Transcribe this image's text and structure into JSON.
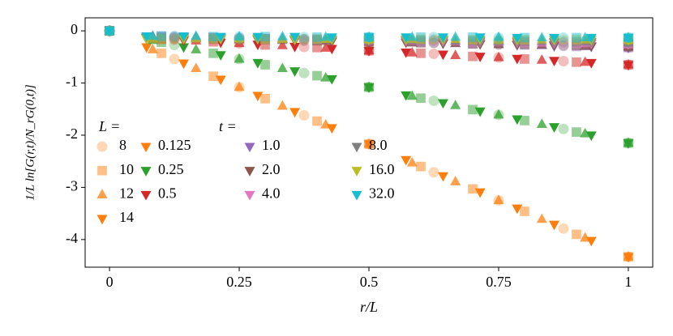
{
  "chart_data": {
    "type": "scatter",
    "xlabel": "r/L",
    "ylabel": "1/L ln[G(r,t)/N_rG(0,t)]",
    "xlim": [
      -0.047,
      1.047
    ],
    "ylim": [
      -4.53,
      0.25
    ],
    "xticks": [
      0,
      0.25,
      0.5,
      0.75,
      1
    ],
    "yticks": [
      0,
      -1,
      -2,
      -3,
      -4
    ],
    "L_legend": {
      "title": "L =",
      "labels": [
        "8",
        "10",
        "12",
        "14"
      ],
      "markers": [
        "circle",
        "square",
        "triangle-up",
        "triangle-down"
      ],
      "alphas": [
        0.3,
        0.5,
        0.75,
        1
      ]
    },
    "t_legend_title": "t =",
    "x": [
      [
        0,
        0.125,
        0.25,
        0.375,
        0.5,
        0.625,
        0.75,
        0.875,
        1
      ],
      [
        0,
        0.1,
        0.2,
        0.3,
        0.4,
        0.5,
        0.6,
        0.7,
        0.8,
        0.9,
        1
      ],
      [
        0,
        0.0833,
        0.1667,
        0.25,
        0.3333,
        0.4167,
        0.5,
        0.5833,
        0.6667,
        0.75,
        0.8333,
        0.9167,
        1
      ],
      [
        0,
        0.0714,
        0.1429,
        0.2143,
        0.2857,
        0.3571,
        0.4286,
        0.5,
        0.5714,
        0.6429,
        0.7143,
        0.7857,
        0.8571,
        0.9286,
        1
      ]
    ],
    "series": [
      {
        "name": "0.125",
        "color": "#ff7f0e",
        "values": [
          [
            0,
            -0.54,
            -1.08,
            -1.62,
            -2.17,
            -2.71,
            -3.25,
            -3.79,
            -4.33
          ],
          [
            0,
            -0.43,
            -0.87,
            -1.3,
            -1.73,
            -2.17,
            -2.6,
            -3.03,
            -3.46,
            -3.9,
            -4.33
          ],
          [
            0,
            -0.36,
            -0.72,
            -1.08,
            -1.44,
            -1.8,
            -2.17,
            -2.53,
            -2.89,
            -3.25,
            -3.61,
            -3.97,
            -4.33
          ],
          [
            0,
            -0.31,
            -0.62,
            -0.93,
            -1.24,
            -1.55,
            -1.86,
            -2.17,
            -2.47,
            -2.78,
            -3.09,
            -3.4,
            -3.71,
            -4.02,
            -4.33
          ]
        ]
      },
      {
        "name": "0.25",
        "color": "#2ca02c",
        "values": [
          [
            0,
            -0.27,
            -0.54,
            -0.81,
            -1.08,
            -1.34,
            -1.61,
            -1.88,
            -2.15
          ],
          [
            0,
            -0.22,
            -0.43,
            -0.65,
            -0.86,
            -1.08,
            -1.29,
            -1.51,
            -1.72,
            -1.94,
            -2.15
          ],
          [
            0,
            -0.18,
            -0.36,
            -0.54,
            -0.72,
            -0.9,
            -1.08,
            -1.25,
            -1.43,
            -1.61,
            -1.79,
            -1.97,
            -2.15
          ],
          [
            0,
            -0.15,
            -0.31,
            -0.46,
            -0.61,
            -0.77,
            -0.92,
            -1.08,
            -1.23,
            -1.38,
            -1.54,
            -1.69,
            -1.84,
            -2.0,
            -2.15
          ]
        ]
      },
      {
        "name": "0.5",
        "color": "#d62728",
        "values": [
          [
            0,
            -0.17,
            -0.24,
            -0.31,
            -0.38,
            -0.44,
            -0.51,
            -0.58,
            -0.65
          ],
          [
            0,
            -0.16,
            -0.21,
            -0.27,
            -0.32,
            -0.38,
            -0.43,
            -0.49,
            -0.54,
            -0.6,
            -0.65
          ],
          [
            0,
            -0.15,
            -0.19,
            -0.24,
            -0.28,
            -0.33,
            -0.38,
            -0.42,
            -0.47,
            -0.51,
            -0.56,
            -0.6,
            -0.65
          ],
          [
            0,
            -0.14,
            -0.18,
            -0.22,
            -0.26,
            -0.3,
            -0.34,
            -0.38,
            -0.41,
            -0.45,
            -0.49,
            -0.53,
            -0.57,
            -0.61,
            -0.65
          ]
        ]
      },
      {
        "name": "1.0",
        "color": "#9467bd",
        "values": [
          [
            0,
            -0.11,
            -0.14,
            -0.17,
            -0.2,
            -0.23,
            -0.26,
            -0.29,
            -0.32
          ],
          [
            0,
            -0.1,
            -0.13,
            -0.15,
            -0.18,
            -0.2,
            -0.22,
            -0.25,
            -0.27,
            -0.3,
            -0.32
          ],
          [
            0,
            -0.1,
            -0.12,
            -0.14,
            -0.16,
            -0.18,
            -0.2,
            -0.22,
            -0.24,
            -0.26,
            -0.28,
            -0.3,
            -0.32
          ],
          [
            0,
            -0.1,
            -0.11,
            -0.13,
            -0.15,
            -0.17,
            -0.18,
            -0.2,
            -0.22,
            -0.23,
            -0.25,
            -0.27,
            -0.29,
            -0.3,
            -0.32
          ]
        ]
      },
      {
        "name": "2.0",
        "color": "#8c564b",
        "values": [
          [
            0,
            -0.14,
            -0.17,
            -0.19,
            -0.21,
            -0.23,
            -0.26,
            -0.28,
            -0.3
          ],
          [
            0,
            -0.14,
            -0.16,
            -0.17,
            -0.19,
            -0.21,
            -0.23,
            -0.25,
            -0.26,
            -0.28,
            -0.3
          ],
          [
            0,
            -0.14,
            -0.15,
            -0.17,
            -0.18,
            -0.2,
            -0.21,
            -0.23,
            -0.24,
            -0.26,
            -0.27,
            -0.29,
            -0.3
          ],
          [
            0,
            -0.13,
            -0.15,
            -0.16,
            -0.17,
            -0.18,
            -0.2,
            -0.21,
            -0.22,
            -0.24,
            -0.25,
            -0.26,
            -0.27,
            -0.29,
            -0.3
          ]
        ]
      },
      {
        "name": "4.0",
        "color": "#e377c2",
        "values": [
          [
            0,
            -0.12,
            -0.14,
            -0.16,
            -0.18,
            -0.19,
            -0.21,
            -0.23,
            -0.25
          ],
          [
            0,
            -0.12,
            -0.13,
            -0.15,
            -0.16,
            -0.18,
            -0.19,
            -0.21,
            -0.22,
            -0.24,
            -0.25
          ],
          [
            0,
            -0.11,
            -0.13,
            -0.14,
            -0.15,
            -0.16,
            -0.18,
            -0.19,
            -0.2,
            -0.21,
            -0.23,
            -0.24,
            -0.25
          ],
          [
            0,
            -0.11,
            -0.12,
            -0.13,
            -0.14,
            -0.15,
            -0.16,
            -0.18,
            -0.19,
            -0.2,
            -0.21,
            -0.22,
            -0.23,
            -0.24,
            -0.25
          ]
        ]
      },
      {
        "name": "8.0",
        "color": "#7f7f7f",
        "values": [
          [
            0,
            -0.13,
            -0.15,
            -0.16,
            -0.17,
            -0.18,
            -0.2,
            -0.21,
            -0.22
          ],
          [
            0,
            -0.13,
            -0.14,
            -0.15,
            -0.16,
            -0.17,
            -0.18,
            -0.19,
            -0.2,
            -0.21,
            -0.22
          ],
          [
            0,
            -0.13,
            -0.14,
            -0.15,
            -0.15,
            -0.16,
            -0.17,
            -0.18,
            -0.19,
            -0.2,
            -0.2,
            -0.21,
            -0.22
          ],
          [
            0,
            -0.13,
            -0.13,
            -0.14,
            -0.15,
            -0.16,
            -0.16,
            -0.17,
            -0.18,
            -0.18,
            -0.19,
            -0.2,
            -0.21,
            -0.21,
            -0.22
          ]
        ]
      },
      {
        "name": "16.0",
        "color": "#bcbd22",
        "values": [
          [
            0,
            -0.15,
            -0.16,
            -0.16,
            -0.16,
            -0.16,
            -0.17,
            -0.17,
            -0.17
          ],
          [
            0,
            -0.15,
            -0.15,
            -0.16,
            -0.16,
            -0.16,
            -0.16,
            -0.17,
            -0.17,
            -0.17,
            -0.17
          ],
          [
            0,
            -0.15,
            -0.15,
            -0.15,
            -0.16,
            -0.16,
            -0.16,
            -0.16,
            -0.16,
            -0.17,
            -0.17,
            -0.17,
            -0.17
          ],
          [
            0,
            -0.15,
            -0.15,
            -0.15,
            -0.15,
            -0.16,
            -0.16,
            -0.16,
            -0.16,
            -0.16,
            -0.16,
            -0.17,
            -0.17,
            -0.17,
            -0.17
          ]
        ]
      },
      {
        "name": "32.0",
        "color": "#17becf",
        "values": [
          [
            0,
            -0.1,
            -0.11,
            -0.12,
            -0.12,
            -0.12,
            -0.13,
            -0.13,
            -0.13
          ],
          [
            0,
            -0.1,
            -0.11,
            -0.11,
            -0.12,
            -0.12,
            -0.12,
            -0.12,
            -0.13,
            -0.13,
            -0.13
          ],
          [
            0,
            -0.1,
            -0.1,
            -0.11,
            -0.11,
            -0.12,
            -0.12,
            -0.12,
            -0.12,
            -0.12,
            -0.13,
            -0.13,
            -0.13
          ],
          [
            0,
            -0.1,
            -0.1,
            -0.11,
            -0.11,
            -0.11,
            -0.12,
            -0.12,
            -0.12,
            -0.12,
            -0.12,
            -0.13,
            -0.13,
            -0.13,
            -0.13
          ]
        ]
      }
    ],
    "series_marker": "triangle-down"
  }
}
